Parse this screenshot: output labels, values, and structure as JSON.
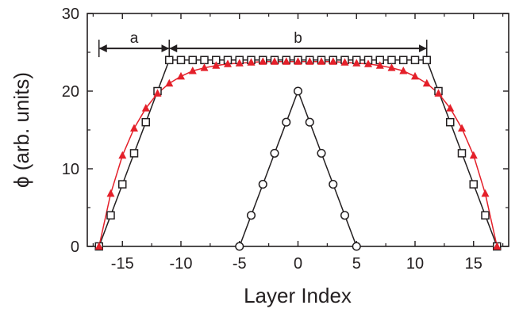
{
  "chart_data": {
    "type": "line",
    "title": "",
    "xlabel": "Layer Index",
    "ylabel": "ϕ (arb. units)",
    "xlim": [
      -18,
      18
    ],
    "ylim": [
      0,
      30
    ],
    "x_ticks": [
      -15,
      -10,
      -5,
      0,
      5,
      10,
      15
    ],
    "x_tick_labels": [
      "-15",
      "-10",
      "-5",
      "0",
      "5",
      "10",
      "15"
    ],
    "y_ticks": [
      0,
      10,
      20,
      30
    ],
    "y_tick_labels": [
      "0",
      "10",
      "20",
      "30"
    ],
    "grid": false,
    "legend": "none",
    "series": [
      {
        "marker": "open-square",
        "color": "#231f20",
        "x": [
          -17,
          -16,
          -15,
          -14,
          -13,
          -12,
          -11,
          -10,
          -9,
          -8,
          -7,
          -6,
          -5,
          -4,
          -3,
          -2,
          -1,
          0,
          1,
          2,
          3,
          4,
          5,
          6,
          7,
          8,
          9,
          10,
          11,
          12,
          13,
          14,
          15,
          16,
          17
        ],
        "y": [
          0,
          4,
          8,
          12,
          16,
          20,
          24,
          24,
          24,
          24,
          24,
          24,
          24,
          24,
          24,
          24,
          24,
          24,
          24,
          24,
          24,
          24,
          24,
          24,
          24,
          24,
          24,
          24,
          24,
          20,
          16,
          12,
          8,
          4,
          0
        ]
      },
      {
        "marker": "filled-triangle",
        "color": "#e4202a",
        "x": [
          -17,
          -16,
          -15,
          -14,
          -13,
          -12,
          -11,
          -10,
          -9,
          -8,
          -7,
          -6,
          -5,
          -4,
          -3,
          -2,
          -1,
          0,
          1,
          2,
          3,
          4,
          5,
          6,
          7,
          8,
          9,
          10,
          11,
          12,
          13,
          14,
          15,
          16,
          17
        ],
        "y": [
          0,
          6.8,
          11.7,
          15.2,
          17.8,
          19.7,
          21.0,
          21.9,
          22.6,
          23.0,
          23.3,
          23.5,
          23.6,
          23.7,
          23.8,
          23.8,
          23.8,
          23.8,
          23.8,
          23.8,
          23.8,
          23.7,
          23.6,
          23.5,
          23.3,
          23.0,
          22.6,
          21.9,
          21.0,
          19.7,
          17.8,
          15.2,
          11.7,
          6.8,
          0
        ]
      },
      {
        "marker": "open-circle",
        "color": "#231f20",
        "x": [
          -5,
          -4,
          -3,
          -2,
          -1,
          0,
          1,
          2,
          3,
          4,
          5
        ],
        "y": [
          0,
          4,
          8,
          12,
          16,
          20,
          16,
          12,
          8,
          4,
          0
        ]
      }
    ],
    "annotations": [
      {
        "label": "a",
        "from_x": -17,
        "to_x": -11,
        "y": 25.5
      },
      {
        "label": "b",
        "from_x": -11,
        "to_x": 11,
        "y": 25.5
      }
    ]
  }
}
